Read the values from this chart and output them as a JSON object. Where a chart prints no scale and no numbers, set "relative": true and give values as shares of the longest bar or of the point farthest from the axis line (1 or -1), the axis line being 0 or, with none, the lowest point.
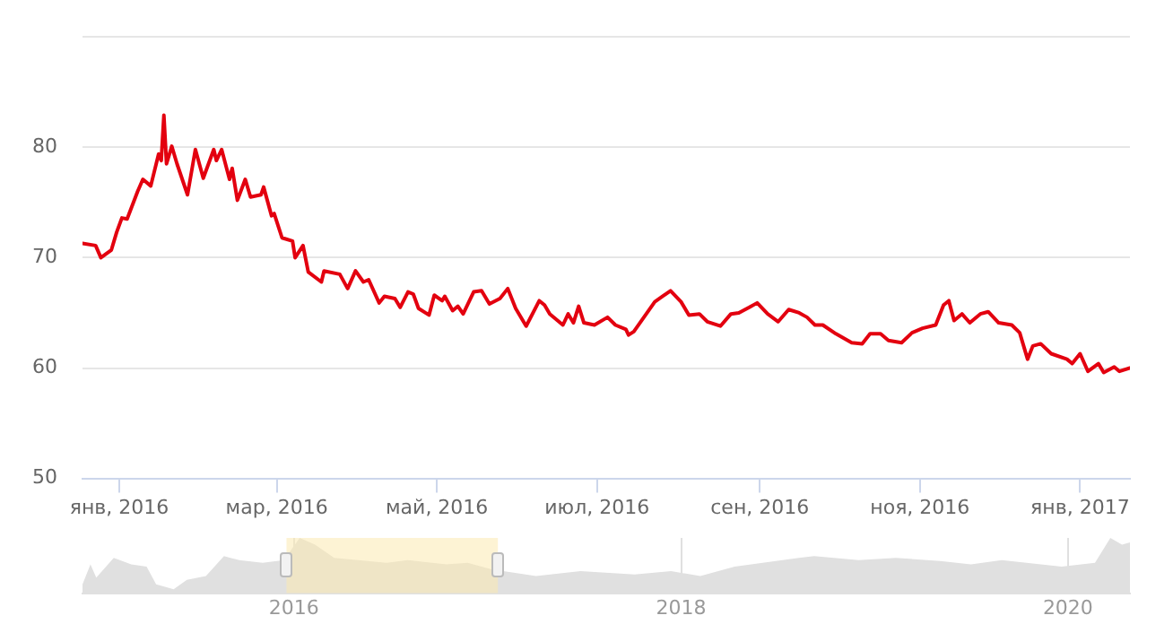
{
  "chart_data": [
    {
      "type": "line",
      "x": [
        "2015-12-18",
        "2015-12-23",
        "2015-12-25",
        "2015-12-29",
        "2015-12-31",
        "2016-01-02",
        "2016-01-04",
        "2016-01-08",
        "2016-01-10",
        "2016-01-13",
        "2016-01-16",
        "2016-01-17",
        "2016-01-18",
        "2016-01-19",
        "2016-01-21",
        "2016-01-23",
        "2016-01-27",
        "2016-01-30",
        "2016-02-02",
        "2016-02-06",
        "2016-02-07",
        "2016-02-09",
        "2016-02-12",
        "2016-02-13",
        "2016-02-15",
        "2016-02-18",
        "2016-02-20",
        "2016-02-24",
        "2016-02-25",
        "2016-02-28",
        "2016-02-29",
        "2016-03-03",
        "2016-03-07",
        "2016-03-08",
        "2016-03-11",
        "2016-03-13",
        "2016-03-18",
        "2016-03-19",
        "2016-03-25",
        "2016-03-28",
        "2016-03-31",
        "2016-04-03",
        "2016-04-05",
        "2016-04-09",
        "2016-04-11",
        "2016-04-15",
        "2016-04-17",
        "2016-04-20",
        "2016-04-22",
        "2016-04-24",
        "2016-04-28",
        "2016-04-30",
        "2016-05-03",
        "2016-05-04",
        "2016-05-07",
        "2016-05-09",
        "2016-05-11",
        "2016-05-15",
        "2016-05-18",
        "2016-05-21",
        "2016-05-25",
        "2016-05-28",
        "2016-05-31",
        "2016-06-04",
        "2016-06-09",
        "2016-06-11",
        "2016-06-13",
        "2016-06-18",
        "2016-06-20",
        "2016-06-22",
        "2016-06-24",
        "2016-06-26",
        "2016-06-30",
        "2016-07-05",
        "2016-07-08",
        "2016-07-12",
        "2016-07-13",
        "2016-07-15",
        "2016-07-23",
        "2016-07-26",
        "2016-07-29",
        "2016-08-02",
        "2016-08-05",
        "2016-08-09",
        "2016-08-12",
        "2016-08-17",
        "2016-08-21",
        "2016-08-24",
        "2016-08-28",
        "2016-08-31",
        "2016-09-04",
        "2016-09-08",
        "2016-09-12",
        "2016-09-16",
        "2016-09-19",
        "2016-09-22",
        "2016-09-25",
        "2016-09-30",
        "2016-10-03",
        "2016-10-06",
        "2016-10-10",
        "2016-10-13",
        "2016-10-17",
        "2016-10-20",
        "2016-10-25",
        "2016-10-29",
        "2016-11-02",
        "2016-11-07",
        "2016-11-10",
        "2016-11-12",
        "2016-11-14",
        "2016-11-17",
        "2016-11-20",
        "2016-11-24",
        "2016-11-27",
        "2016-12-01",
        "2016-12-06",
        "2016-12-09",
        "2016-12-12",
        "2016-12-14",
        "2016-12-17",
        "2016-12-21",
        "2016-12-27",
        "2016-12-29",
        "2017-01-01",
        "2017-01-04",
        "2017-01-08",
        "2017-01-10",
        "2017-01-14",
        "2017-01-16",
        "2017-01-20"
      ],
      "series": [
        {
          "color": "#e3000f",
          "values": [
            71.3,
            71.1,
            70.0,
            70.7,
            72.3,
            73.6,
            73.5,
            76.0,
            77.1,
            76.5,
            79.4,
            78.8,
            82.9,
            78.5,
            80.1,
            78.5,
            75.7,
            79.8,
            77.2,
            79.8,
            78.8,
            79.8,
            77.1,
            78.1,
            75.2,
            77.1,
            75.5,
            75.7,
            76.4,
            73.8,
            74.0,
            71.8,
            71.5,
            70.0,
            71.1,
            68.7,
            67.8,
            68.8,
            68.5,
            67.2,
            68.8,
            67.8,
            68.0,
            65.9,
            66.5,
            66.3,
            65.5,
            66.9,
            66.7,
            65.4,
            64.8,
            66.6,
            66.1,
            66.5,
            65.2,
            65.6,
            64.9,
            66.9,
            67.0,
            65.8,
            66.3,
            67.2,
            65.4,
            63.8,
            66.1,
            65.7,
            64.9,
            63.9,
            64.9,
            64.1,
            65.6,
            64.1,
            63.9,
            64.6,
            63.9,
            63.5,
            63.0,
            63.3,
            66.0,
            66.5,
            67.0,
            66.0,
            64.8,
            64.9,
            64.2,
            63.8,
            64.9,
            65.0,
            65.5,
            65.9,
            64.9,
            64.2,
            65.3,
            65.0,
            64.6,
            63.9,
            63.9,
            63.1,
            62.7,
            62.3,
            62.2,
            63.1,
            63.1,
            62.5,
            62.3,
            63.2,
            63.6,
            63.9,
            65.7,
            66.1,
            64.3,
            64.9,
            64.1,
            64.9,
            65.1,
            64.1,
            63.9,
            63.2,
            60.8,
            62.0,
            62.2,
            61.3,
            60.8,
            60.4,
            61.3,
            59.7,
            60.4,
            59.6,
            60.1,
            59.7,
            60.0
          ]
        }
      ],
      "xlim": [
        "2015-12-18",
        "2017-01-20"
      ],
      "xticks": [
        {
          "value": "2016-01-01",
          "label": "янв, 2016"
        },
        {
          "value": "2016-03-01",
          "label": "мар, 2016"
        },
        {
          "value": "2016-05-01",
          "label": "май, 2016"
        },
        {
          "value": "2016-07-01",
          "label": "июл, 2016"
        },
        {
          "value": "2016-09-01",
          "label": "сен, 2016"
        },
        {
          "value": "2016-11-01",
          "label": "ноя, 2016"
        },
        {
          "value": "2017-01-01",
          "label": "янв, 2017"
        }
      ],
      "ylim": [
        50,
        90
      ],
      "yticks": [
        50,
        60,
        70,
        80,
        {
          "value": 90,
          "label": null
        }
      ],
      "grid": "y"
    },
    {
      "type": "area",
      "relative": true,
      "tick_labels": "x",
      "x": [
        "2014-11-28",
        "2014-12-13",
        "2014-12-24",
        "2015-01-26",
        "2015-02-28",
        "2015-03-29",
        "2015-04-16",
        "2015-05-19",
        "2015-06-13",
        "2015-07-19",
        "2015-08-22",
        "2015-09-20",
        "2015-11-03",
        "2015-12-13",
        "2016-01-12",
        "2016-02-10",
        "2016-03-17",
        "2016-06-24",
        "2016-08-03",
        "2016-10-15",
        "2016-11-24",
        "2017-01-08",
        "2017-04-02",
        "2017-06-25",
        "2017-10-05",
        "2017-12-13",
        "2018-02-06",
        "2018-04-12",
        "2018-08-11",
        "2018-09-09",
        "2018-12-02",
        "2019-02-10",
        "2019-05-05",
        "2019-07-02",
        "2019-08-29",
        "2019-12-20",
        "2020-02-21",
        "2020-03-21",
        "2020-04-12",
        "2020-04-27"
      ],
      "series": [
        {
          "color": "#e0e0e0",
          "values": [
            0.16,
            0.52,
            0.28,
            0.64,
            0.52,
            0.48,
            0.16,
            0.07,
            0.24,
            0.31,
            0.67,
            0.6,
            0.55,
            0.6,
            1.0,
            0.88,
            0.64,
            0.55,
            0.6,
            0.52,
            0.55,
            0.43,
            0.31,
            0.4,
            0.34,
            0.4,
            0.31,
            0.48,
            0.64,
            0.67,
            0.6,
            0.64,
            0.58,
            0.52,
            0.6,
            0.48,
            0.55,
            1.0,
            0.88,
            0.92
          ]
        }
      ],
      "xlim": [
        "2014-11-28",
        "2020-04-27"
      ],
      "xticks": [
        {
          "value": "2016-01-01",
          "label": "2016"
        },
        {
          "value": "2018-01-01",
          "label": "2018"
        },
        {
          "value": "2020-01-01",
          "label": "2020"
        }
      ],
      "bands": [
        {
          "axis": "x",
          "from": "2015-12-18",
          "to": "2017-01-20",
          "color": "#fbeab0"
        }
      ],
      "grid": "x"
    }
  ]
}
